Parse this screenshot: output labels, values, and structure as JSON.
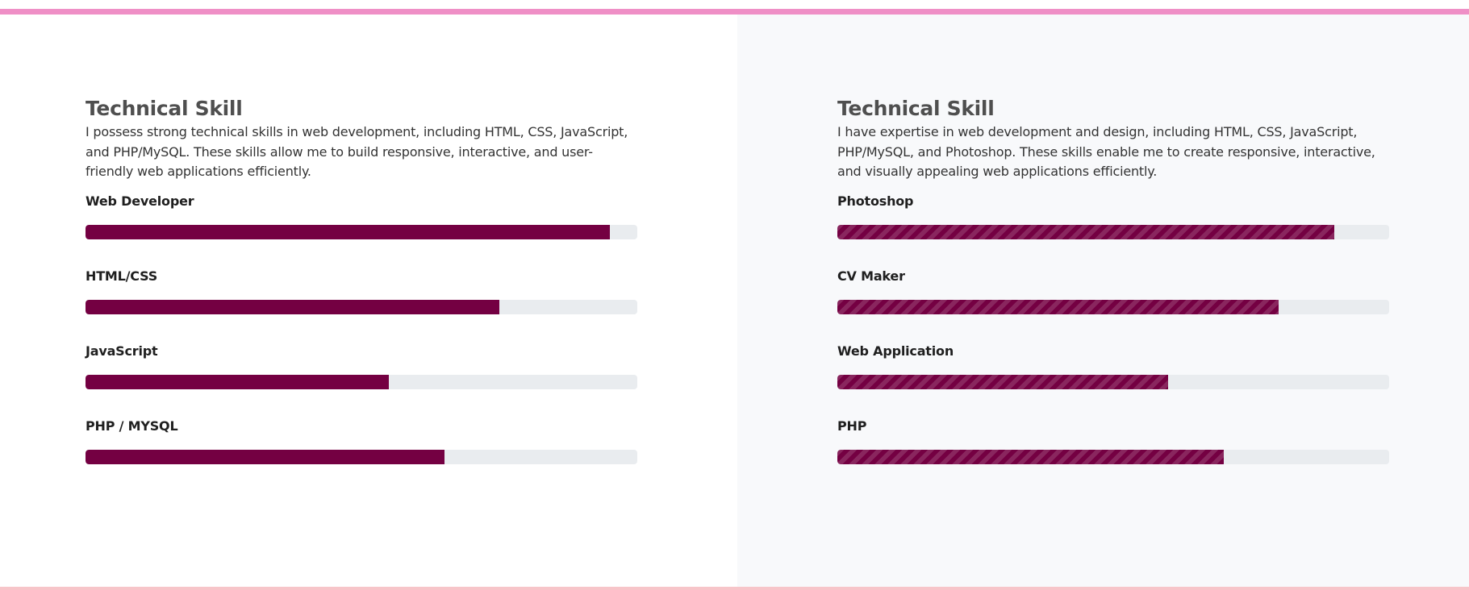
{
  "left": {
    "title": "Technical Skill",
    "description": "I possess strong technical skills in web development, including HTML, CSS, JavaScript, and PHP/MySQL. These skills allow me to build responsive, interactive, and user-friendly web applications efficiently.",
    "skills": [
      {
        "label": "Web Developer",
        "percent": 95
      },
      {
        "label": "HTML/CSS",
        "percent": 75
      },
      {
        "label": "JavaScript",
        "percent": 55
      },
      {
        "label": "PHP / MYSQL",
        "percent": 65
      }
    ]
  },
  "right": {
    "title": "Technical Skill",
    "description": "I have expertise in web development and design, including HTML, CSS, JavaScript, PHP/MySQL, and Photoshop. These skills enable me to create responsive, interactive, and visually appealing web applications efficiently.",
    "skills": [
      {
        "label": "Photoshop",
        "percent": 90
      },
      {
        "label": "CV Maker",
        "percent": 80
      },
      {
        "label": "Web Application",
        "percent": 60
      },
      {
        "label": "PHP",
        "percent": 70
      }
    ]
  },
  "colors": {
    "bar_fill": "#740042",
    "bar_track": "#e9ecef",
    "top_accent": "#ef8fc6"
  }
}
